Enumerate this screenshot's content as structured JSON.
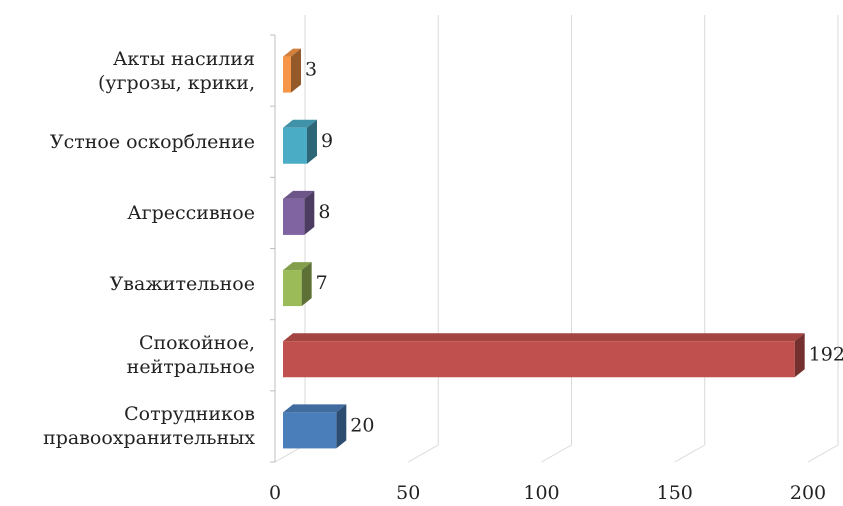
{
  "chart_data": {
    "type": "bar",
    "orientation": "horizontal",
    "categories": [
      "Сотрудников\nправоохранительных",
      "Спокойное,\nнейтральное",
      "Уважительное",
      "Агрессивное",
      "Устное оскорбление",
      "Акты насилия\n(угрозы, крики,"
    ],
    "values": [
      20,
      192,
      7,
      8,
      9,
      3
    ],
    "colors": [
      "#4a7ebb",
      "#c0504d",
      "#9bbb59",
      "#8064a2",
      "#4bacc6",
      "#f79646"
    ],
    "xlim": [
      0,
      200
    ],
    "xticks": [
      0,
      50,
      100,
      150,
      200
    ],
    "grid": true
  }
}
